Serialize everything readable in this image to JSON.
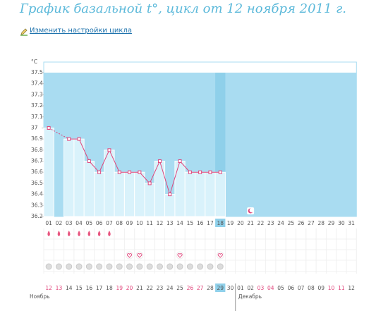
{
  "title": "График базальной t°, цикл от 12 ноября 2011 г.",
  "link": "Изменить настройки цикла",
  "chart_data": {
    "type": "line",
    "unit": "°C",
    "categories": [
      "01",
      "02",
      "03",
      "04",
      "05",
      "06",
      "07",
      "08",
      "09",
      "10",
      "11",
      "12",
      "13",
      "14",
      "15",
      "16",
      "17",
      "18",
      "19",
      "20",
      "21",
      "22",
      "23",
      "24",
      "25",
      "26",
      "27",
      "28",
      "29",
      "30",
      "31"
    ],
    "values": [
      37.0,
      null,
      36.9,
      36.9,
      36.7,
      36.6,
      36.8,
      36.6,
      36.6,
      36.6,
      36.5,
      36.7,
      36.4,
      36.7,
      36.6,
      36.6,
      36.6,
      36.6,
      null,
      null,
      null,
      null,
      null,
      null,
      null,
      null,
      null,
      null,
      null,
      null,
      null
    ],
    "color": "#e0457b",
    "ylim": [
      36.2,
      37.5
    ],
    "yticks": [
      37.5,
      37.4,
      37.3,
      37.2,
      37.1,
      37,
      36.9,
      36.8,
      36.7,
      36.6,
      36.5,
      36.4,
      36.3,
      36.2
    ],
    "today": 17,
    "moon": 20,
    "drops": [
      0,
      1,
      2,
      3,
      4,
      5,
      6
    ],
    "hearts": [
      8,
      9,
      13,
      17
    ],
    "circles": [
      0,
      1,
      2,
      3,
      4,
      5,
      6,
      7,
      8,
      9,
      10,
      11,
      12,
      13,
      14,
      15,
      16,
      17
    ],
    "dates": [
      "12",
      "13",
      "14",
      "15",
      "16",
      "17",
      "18",
      "19",
      "20",
      "21",
      "22",
      "23",
      "24",
      "25",
      "26",
      "27",
      "28",
      "29",
      "30",
      "01",
      "02",
      "03",
      "04",
      "05",
      "06",
      "07",
      "08",
      "09",
      "10",
      "11",
      "12"
    ],
    "weekends": [
      0,
      1,
      7,
      8,
      14,
      15,
      21,
      22,
      28,
      29
    ],
    "months": [
      {
        "name": "Ноябрь",
        "start": 0
      },
      {
        "name": "Декабрь",
        "start": 19
      }
    ]
  }
}
